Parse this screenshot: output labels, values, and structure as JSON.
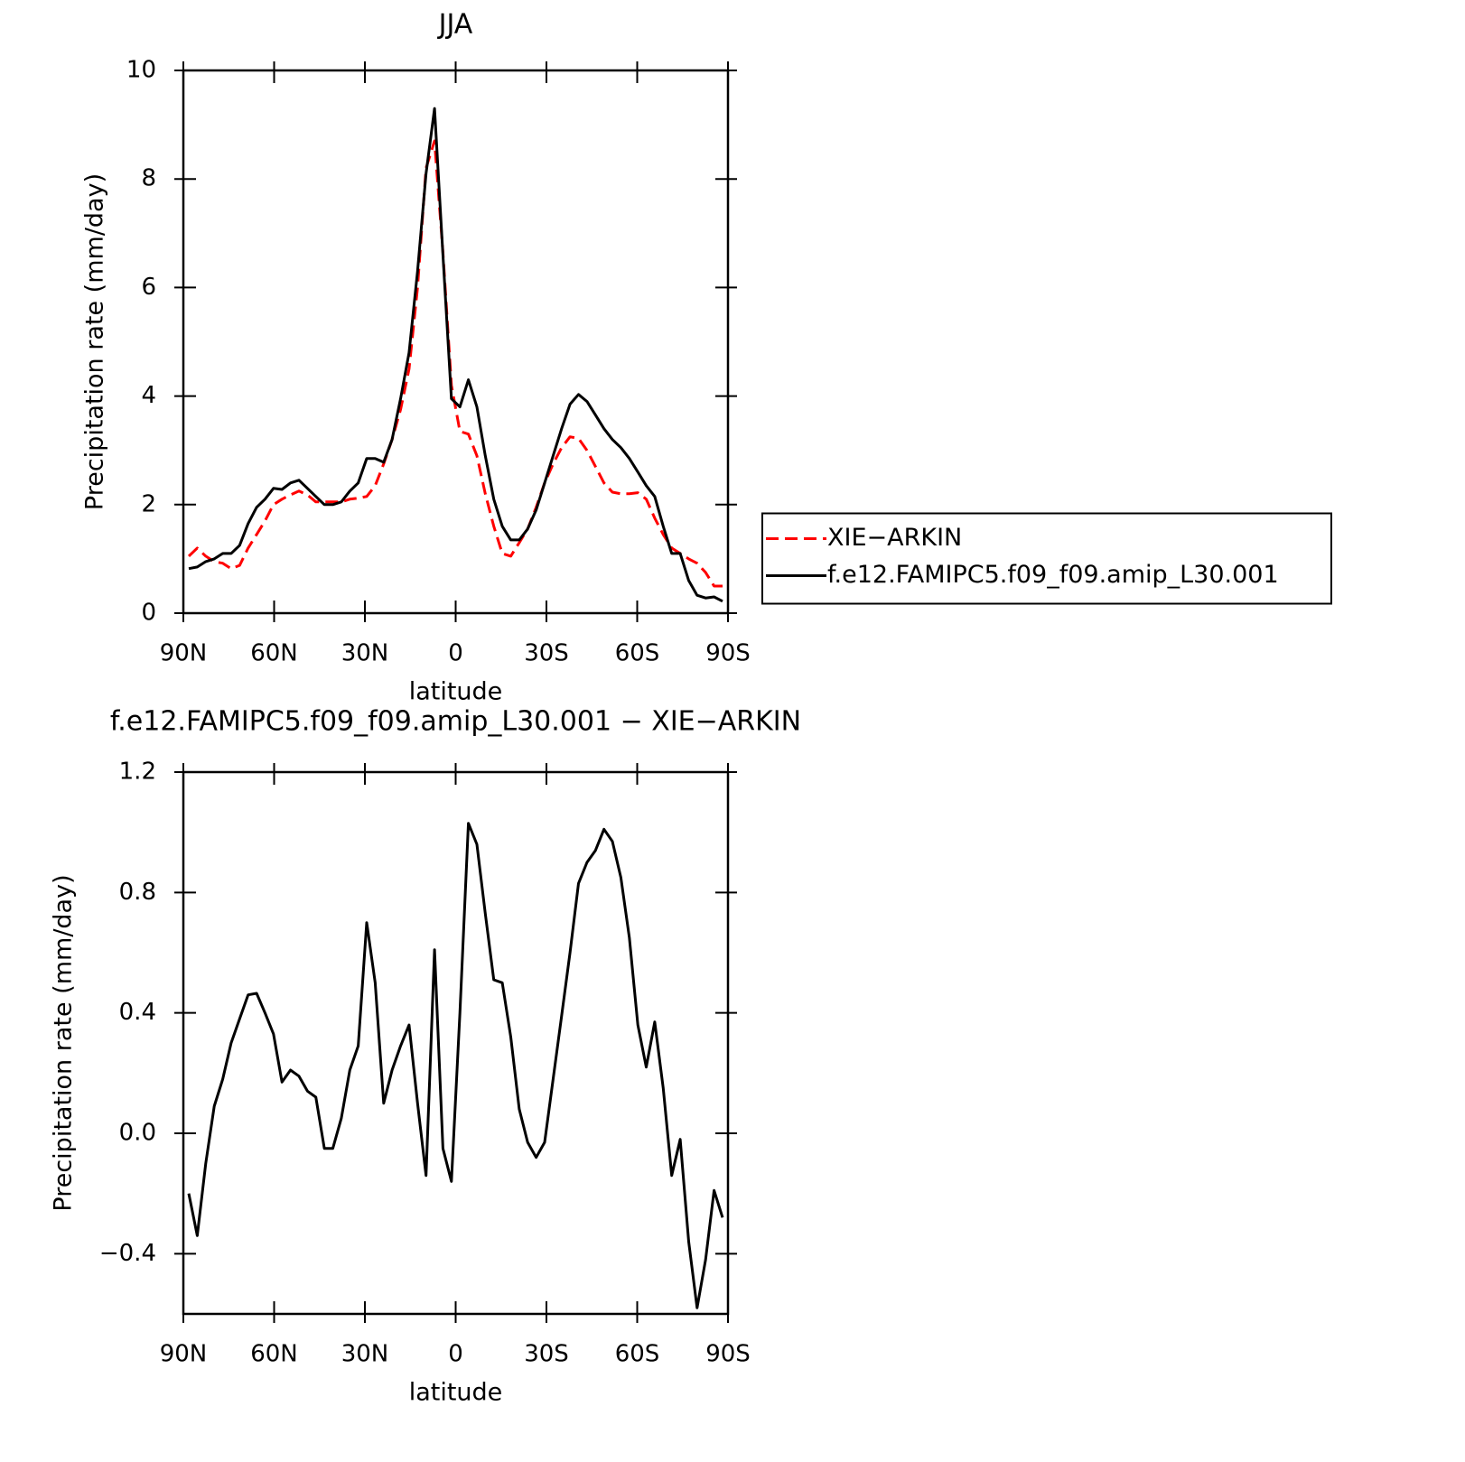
{
  "chart_data": [
    {
      "type": "line",
      "title": "JJA",
      "xlabel": "latitude",
      "ylabel": "Precipitation rate (mm/day)",
      "x": [
        88.2,
        85.4,
        82.6,
        79.8,
        77,
        74.2,
        71.4,
        68.6,
        65.8,
        63,
        60.2,
        57.4,
        54.6,
        51.8,
        49,
        46.2,
        43.4,
        40.6,
        37.8,
        35,
        32.2,
        29.4,
        26.6,
        23.8,
        21,
        18.2,
        15.4,
        12.6,
        9.8,
        7,
        4.2,
        1.4,
        -1.4,
        -4.2,
        -7,
        -9.8,
        -12.6,
        -15.4,
        -18.2,
        -21,
        -23.8,
        -26.6,
        -29.4,
        -32.2,
        -35,
        -37.8,
        -40.6,
        -43.4,
        -46.2,
        -49,
        -51.8,
        -54.6,
        -57.4,
        -60.2,
        -63,
        -65.8,
        -68.6,
        -71.4,
        -74.2,
        -77,
        -79.8,
        -82.6,
        -85.4,
        -88.2
      ],
      "series": [
        {
          "name": "XIE−ARKIN",
          "color": "#ff0000",
          "line_style": "dashed",
          "values": [
            1.05,
            1.2,
            1.05,
            0.95,
            0.92,
            0.82,
            0.88,
            1.2,
            1.45,
            1.7,
            2.0,
            2.1,
            2.18,
            2.25,
            2.18,
            2.05,
            2.05,
            2.05,
            2.05,
            2.1,
            2.12,
            2.15,
            2.35,
            2.75,
            3.2,
            3.75,
            4.5,
            6.0,
            8.2,
            8.7,
            6.65,
            4.2,
            3.35,
            3.3,
            2.9,
            2.2,
            1.6,
            1.1,
            1.05,
            1.3,
            1.55,
            1.95,
            2.4,
            2.75,
            3.05,
            3.25,
            3.22,
            3.0,
            2.7,
            2.4,
            2.23,
            2.2,
            2.2,
            2.22,
            2.1,
            1.75,
            1.45,
            1.2,
            1.1,
            1.0,
            0.92,
            0.75,
            0.5,
            0.5
          ]
        },
        {
          "name": "f.e12.FAMIPC5.f09_f09.amip_L30.001",
          "color": "#000000",
          "line_style": "solid",
          "values": [
            0.82,
            0.85,
            0.95,
            1.0,
            1.1,
            1.1,
            1.25,
            1.65,
            1.95,
            2.1,
            2.3,
            2.28,
            2.4,
            2.45,
            2.3,
            2.15,
            2.0,
            2.0,
            2.05,
            2.25,
            2.4,
            2.85,
            2.85,
            2.78,
            3.2,
            3.95,
            4.8,
            6.3,
            8.1,
            9.3,
            6.6,
            3.95,
            3.8,
            4.3,
            3.8,
            2.9,
            2.1,
            1.6,
            1.35,
            1.35,
            1.55,
            1.9,
            2.4,
            2.9,
            3.4,
            3.85,
            4.03,
            3.9,
            3.65,
            3.4,
            3.2,
            3.05,
            2.85,
            2.6,
            2.35,
            2.15,
            1.6,
            1.1,
            1.1,
            0.6,
            0.33,
            0.28,
            0.3,
            0.22
          ]
        }
      ],
      "xlim": [
        90,
        -90
      ],
      "xticks": [
        {
          "value": 90,
          "label": "90N"
        },
        {
          "value": 60,
          "label": "60N"
        },
        {
          "value": 30,
          "label": "30N"
        },
        0,
        {
          "value": -30,
          "label": "30S"
        },
        {
          "value": -60,
          "label": "60S"
        },
        {
          "value": -90,
          "label": "90S"
        }
      ],
      "ylim": [
        0,
        10
      ],
      "yticks": [
        0,
        2,
        4,
        6,
        8,
        10
      ],
      "legend": "right",
      "grid": false
    },
    {
      "type": "line",
      "title": "f.e12.FAMIPC5.f09_f09.amip_L30.001 − XIE−ARKIN",
      "xlabel": "latitude",
      "ylabel": "Precipitation rate (mm/day)",
      "x": [
        88.2,
        85.4,
        82.6,
        79.8,
        77,
        74.2,
        71.4,
        68.6,
        65.8,
        63,
        60.2,
        57.4,
        54.6,
        51.8,
        49,
        46.2,
        43.4,
        40.6,
        37.8,
        35,
        32.2,
        29.4,
        26.6,
        23.8,
        21,
        18.2,
        15.4,
        12.6,
        9.8,
        7,
        4.2,
        1.4,
        -1.4,
        -4.2,
        -7,
        -9.8,
        -12.6,
        -15.4,
        -18.2,
        -21,
        -23.8,
        -26.6,
        -29.4,
        -32.2,
        -35,
        -37.8,
        -40.6,
        -43.4,
        -46.2,
        -49,
        -51.8,
        -54.6,
        -57.4,
        -60.2,
        -63,
        -65.8,
        -68.6,
        -71.4,
        -74.2,
        -77,
        -79.8,
        -82.6,
        -85.4,
        -88.2
      ],
      "series": [
        {
          "color": "#000000",
          "line_style": "solid",
          "values": [
            -0.2,
            -0.34,
            -0.1,
            0.09,
            0.18,
            0.3,
            0.38,
            0.46,
            0.465,
            0.4,
            0.33,
            0.17,
            0.21,
            0.19,
            0.14,
            0.12,
            -0.05,
            -0.05,
            0.05,
            0.21,
            0.29,
            0.7,
            0.5,
            0.1,
            0.21,
            0.29,
            0.36,
            0.1,
            -0.14,
            0.61,
            -0.05,
            -0.16,
            0.4,
            1.03,
            0.96,
            0.73,
            0.51,
            0.5,
            0.32,
            0.08,
            -0.03,
            -0.08,
            -0.03,
            0.18,
            0.39,
            0.6,
            0.83,
            0.9,
            0.94,
            1.01,
            0.97,
            0.85,
            0.65,
            0.36,
            0.22,
            0.37,
            0.15,
            -0.14,
            -0.02,
            -0.36,
            -0.58,
            -0.42,
            -0.19,
            -0.28
          ]
        }
      ],
      "xlim": [
        90,
        -90
      ],
      "xticks": [
        {
          "value": 90,
          "label": "90N"
        },
        {
          "value": 60,
          "label": "60N"
        },
        {
          "value": 30,
          "label": "30N"
        },
        0,
        {
          "value": -30,
          "label": "30S"
        },
        {
          "value": -60,
          "label": "60S"
        },
        {
          "value": -90,
          "label": "90S"
        }
      ],
      "ylim": [
        -0.6,
        1.2
      ],
      "yticks": [
        1.2,
        0.8,
        0.4,
        {
          "value": 0,
          "label": "0.0"
        },
        {
          "value": -0.4,
          "label": "−0.4"
        }
      ],
      "grid": false
    }
  ]
}
